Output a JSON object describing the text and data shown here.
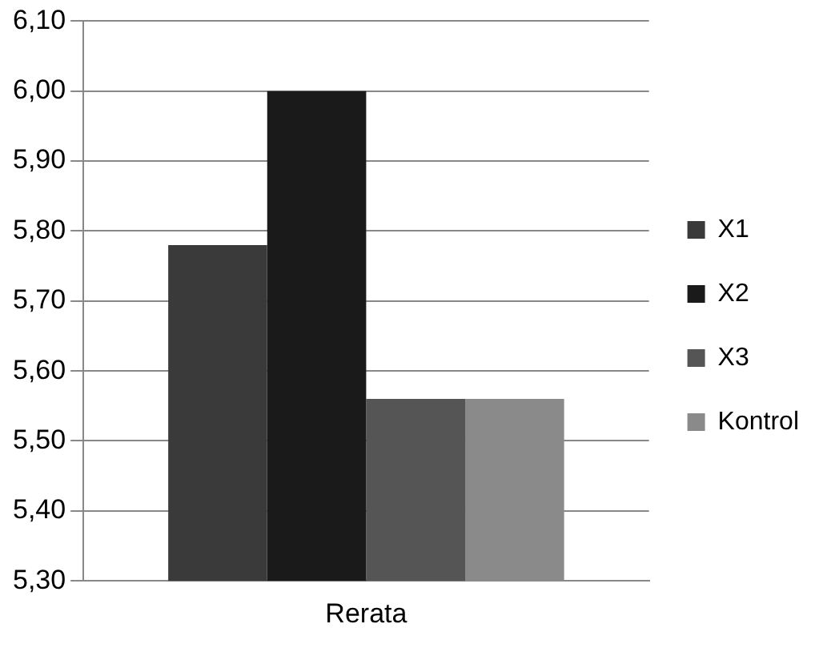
{
  "chart_data": {
    "type": "bar",
    "categories": [
      "Rerata"
    ],
    "series": [
      {
        "name": "X1",
        "color": "#3a3a3a",
        "values": [
          5.78
        ]
      },
      {
        "name": "X2",
        "color": "#1a1a1a",
        "values": [
          6.0
        ]
      },
      {
        "name": "X3",
        "color": "#555555",
        "values": [
          5.56
        ]
      },
      {
        "name": "Kontrol",
        "color": "#8a8a8a",
        "values": [
          5.56
        ]
      }
    ],
    "ylim": [
      5.3,
      6.1
    ],
    "yticks": [
      {
        "value": 5.3,
        "label": "5,30"
      },
      {
        "value": 5.4,
        "label": "5,40"
      },
      {
        "value": 5.5,
        "label": "5,50"
      },
      {
        "value": 5.6,
        "label": "5,60"
      },
      {
        "value": 5.7,
        "label": "5,70"
      },
      {
        "value": 5.8,
        "label": "5,80"
      },
      {
        "value": 5.9,
        "label": "5,90"
      },
      {
        "value": 6.0,
        "label": "6,00"
      },
      {
        "value": 6.1,
        "label": "6,10"
      }
    ],
    "grid": "y",
    "legend": "right"
  }
}
